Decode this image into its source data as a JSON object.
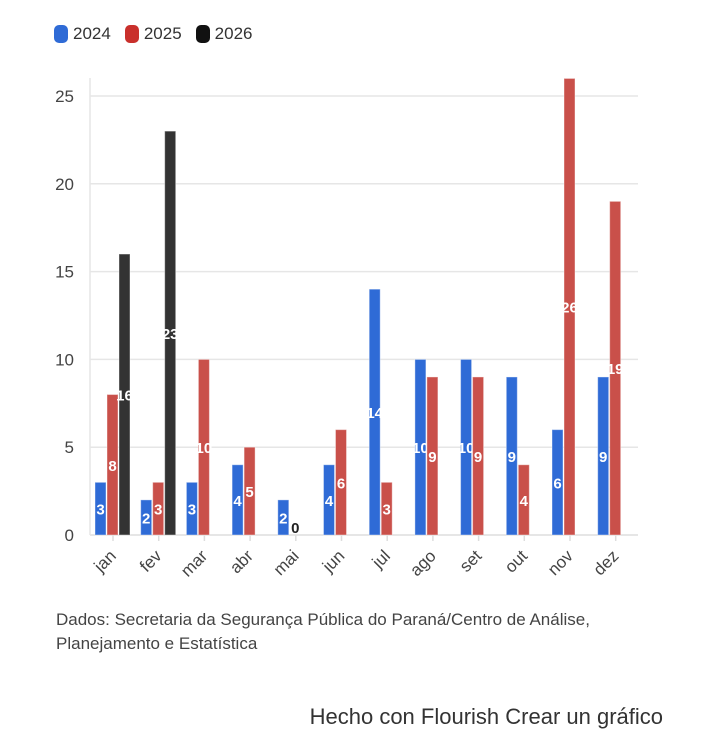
{
  "legend": [
    {
      "label": "2024",
      "color": "#2f6bd6"
    },
    {
      "label": "2025",
      "color": "#c9504a"
    },
    {
      "label": "2026",
      "color": "#333333"
    }
  ],
  "chart_data": {
    "type": "bar",
    "categories": [
      "jan",
      "fev",
      "mar",
      "abr",
      "mai",
      "jun",
      "jul",
      "ago",
      "set",
      "out",
      "nov",
      "dez"
    ],
    "series": [
      {
        "name": "2024",
        "values": [
          3,
          2,
          3,
          4,
          2,
          4,
          14,
          10,
          10,
          9,
          6,
          9
        ]
      },
      {
        "name": "2025",
        "values": [
          8,
          3,
          10,
          5,
          0,
          6,
          3,
          9,
          9,
          4,
          26,
          19
        ]
      },
      {
        "name": "2026",
        "values": [
          16,
          23,
          null,
          null,
          null,
          null,
          null,
          null,
          null,
          null,
          null,
          null
        ]
      }
    ],
    "yticks": [
      0,
      5,
      10,
      15,
      20,
      25
    ],
    "ylim": [
      0,
      26
    ],
    "grid": true,
    "legend_position": "top-left"
  },
  "source": "Dados: Secretaria da Segurança Pública do Paraná/Centro de Análise, Planejamento e Estatística",
  "footer": "Hecho con Flourish Crear un gráfico"
}
